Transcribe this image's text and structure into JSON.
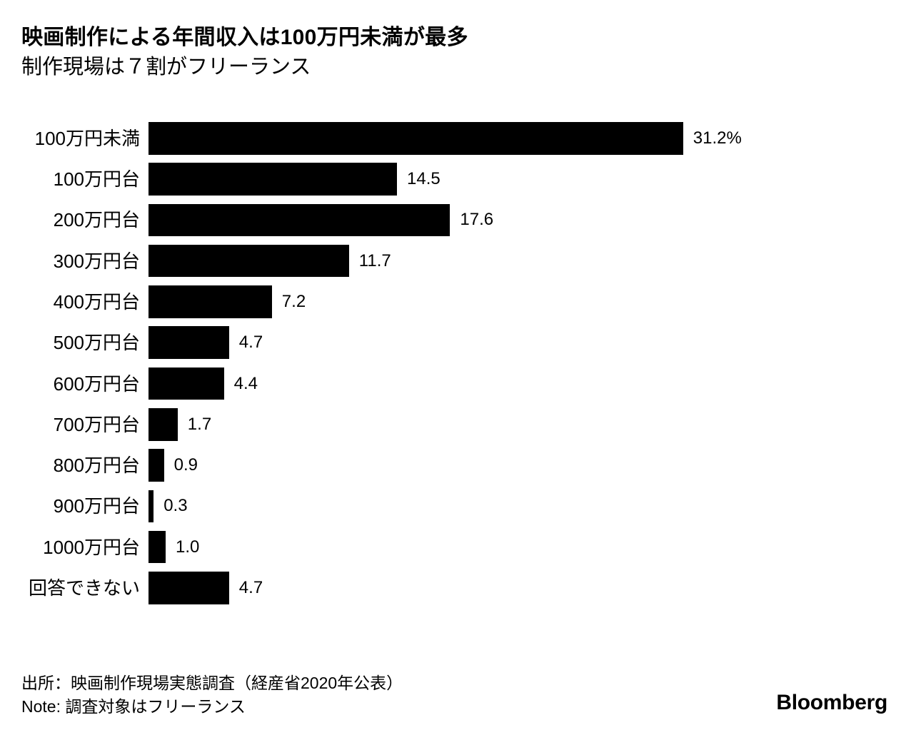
{
  "header": {
    "title": "映画制作による年間収入は100万円未満が最多",
    "subtitle": "制作現場は７割がフリーランス"
  },
  "chart_data": {
    "type": "bar",
    "orientation": "horizontal",
    "title": "映画制作による年間収入は100万円未満が最多",
    "subtitle": "制作現場は７割がフリーランス",
    "unit": "%",
    "xlim": [
      0,
      31.2
    ],
    "grid": false,
    "legend": false,
    "bar_color": "#000000",
    "categories": [
      "100万円未満",
      "100万円台",
      "200万円台",
      "300万円台",
      "400万円台",
      "500万円台",
      "600万円台",
      "700万円台",
      "800万円台",
      "900万円台",
      "1000万円台",
      "回答できない"
    ],
    "values": [
      31.2,
      14.5,
      17.6,
      11.7,
      7.2,
      4.7,
      4.4,
      1.7,
      0.9,
      0.3,
      1.0,
      4.7
    ],
    "value_labels": [
      "31.2%",
      "14.5",
      "17.6",
      "11.7",
      "7.2",
      "4.7",
      "4.4",
      "1.7",
      "0.9",
      "0.3",
      "1.0",
      "4.7"
    ]
  },
  "footer": {
    "source": "出所：映画制作現場実態調査（経産省2020年公表）",
    "note": "Note: 調査対象はフリーランス",
    "brand": "Bloomberg"
  }
}
